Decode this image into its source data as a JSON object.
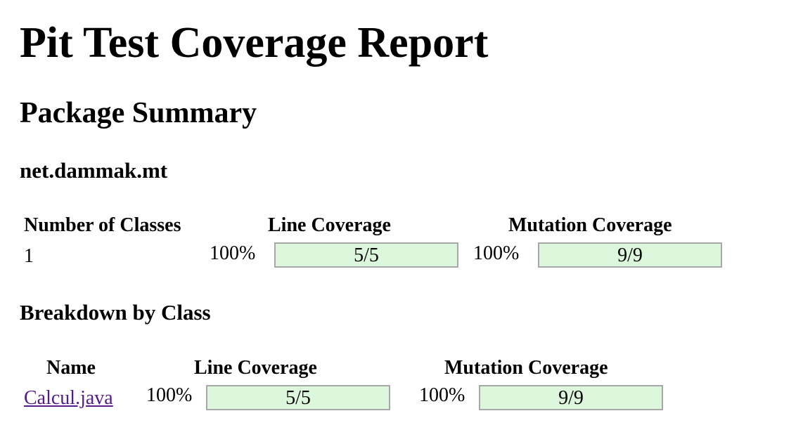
{
  "page": {
    "title": "Pit Test Coverage Report",
    "subtitle": "Package Summary"
  },
  "package": {
    "name": "net.dammak.mt",
    "headers": {
      "classes": "Number of Classes",
      "line": "Line Coverage",
      "mutation": "Mutation Coverage"
    },
    "summary": {
      "classes": "1",
      "line_pct": "100%",
      "line_ratio": "5/5",
      "line_fill": 1.0,
      "mutation_pct": "100%",
      "mutation_ratio": "9/9",
      "mutation_fill": 1.0
    }
  },
  "breakdown": {
    "title": "Breakdown by Class",
    "headers": {
      "name": "Name",
      "line": "Line Coverage",
      "mutation": "Mutation Coverage"
    },
    "rows": [
      {
        "name": "Calcul.java",
        "line_pct": "100%",
        "line_ratio": "5/5",
        "line_fill": 1.0,
        "mutation_pct": "100%",
        "mutation_ratio": "9/9",
        "mutation_fill": 1.0
      }
    ]
  },
  "colors": {
    "bar_fill": "#ddf7dd",
    "bar_border": "#a8a8a8",
    "link": "#551a8b"
  }
}
